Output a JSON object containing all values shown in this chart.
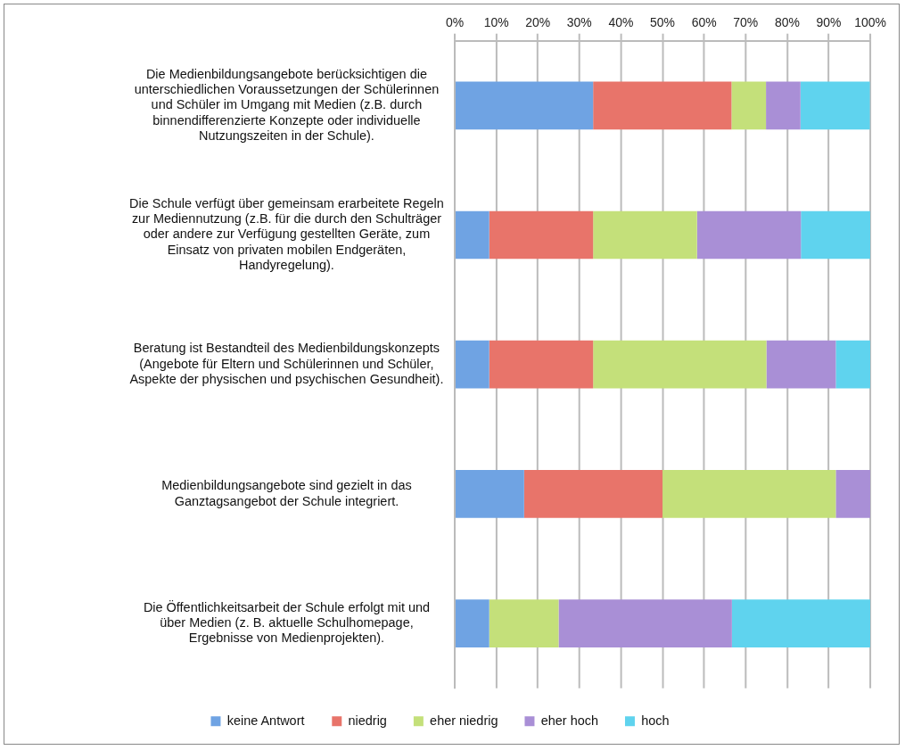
{
  "chart_data": {
    "type": "bar",
    "orientation": "horizontal",
    "stacked": true,
    "categories": [
      "Die Medienbildungsangebote berücksichtigen die\nunterschiedlichen Voraussetzungen der Schülerinnen\nund Schüler im Umgang mit Medien (z.B. durch\nbinnendifferenzierte Konzepte oder individuelle\nNutzungszeiten in der Schule).",
      "Die Schule verfügt über gemeinsam erarbeitete Regeln\nzur Mediennutzung (z.B. für die durch den Schulträger\noder andere zur Verfügung gestellten Geräte, zum\nEinsatz von privaten mobilen Endgeräten,\nHandyregelung).",
      "Beratung ist Bestandteil des Medienbildungskonzepts\n(Angebote für Eltern und Schülerinnen und Schüler,\nAspekte der physischen und psychischen Gesundheit).",
      "Medienbildungsangebote sind gezielt in das\nGanztagsangebot der Schule integriert.",
      "Die Öffentlichkeitsarbeit der Schule erfolgt mit und\nüber Medien (z. B. aktuelle Schulhomepage,\nErgebnisse von Medienprojekten)."
    ],
    "series": [
      {
        "name": "keine Antwort",
        "color": "#6fa3e3",
        "values": [
          33.3,
          8.3,
          8.3,
          16.7,
          8.3
        ]
      },
      {
        "name": "niedrig",
        "color": "#e8746a",
        "values": [
          33.3,
          25,
          25,
          33.3,
          0
        ]
      },
      {
        "name": "eher niedrig",
        "color": "#c4e07a",
        "values": [
          8.3,
          25,
          41.7,
          41.7,
          16.7
        ]
      },
      {
        "name": "eher hoch",
        "color": "#a98fd6",
        "values": [
          8.3,
          25,
          16.7,
          8.3,
          41.7
        ]
      },
      {
        "name": "hoch",
        "color": "#5fd3ee",
        "values": [
          16.7,
          16.7,
          8.3,
          0,
          33.3
        ]
      }
    ],
    "xlim": [
      0,
      100
    ],
    "xticks": [
      {
        "value": 0,
        "label": "0%"
      },
      {
        "value": 10,
        "label": "10%"
      },
      {
        "value": 20,
        "label": "20%"
      },
      {
        "value": 30,
        "label": "30%"
      },
      {
        "value": 40,
        "label": "40%"
      },
      {
        "value": 50,
        "label": "50%"
      },
      {
        "value": 60,
        "label": "60%"
      },
      {
        "value": 70,
        "label": "70%"
      },
      {
        "value": 80,
        "label": "80%"
      },
      {
        "value": 90,
        "label": "90%"
      },
      {
        "value": 100,
        "label": "100%"
      }
    ],
    "grid": "x",
    "legend": "bottom"
  }
}
